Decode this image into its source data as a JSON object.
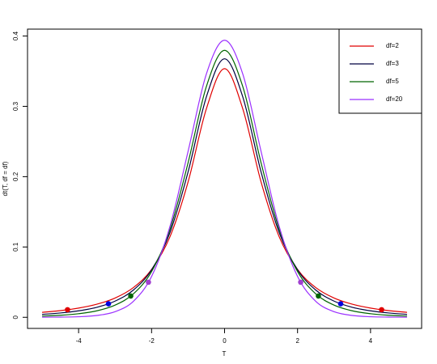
{
  "chart_data": {
    "type": "line",
    "xlabel": "T",
    "ylabel": "dt(T, df = df)",
    "x": [
      -5,
      -4.5,
      -4,
      -3.5,
      -3,
      -2.5,
      -2,
      -1.5,
      -1,
      -0.5,
      0,
      0.5,
      1,
      1.5,
      2,
      2.5,
      3,
      3.5,
      4,
      4.5,
      5
    ],
    "series": [
      {
        "name": "df=2",
        "color": "#e00000",
        "point_color": "#e00000",
        "values": [
          0.0071,
          0.0095,
          0.0131,
          0.0186,
          0.0274,
          0.0422,
          0.068,
          0.1141,
          0.1925,
          0.2963,
          0.3536,
          0.2963,
          0.1925,
          0.1141,
          0.068,
          0.0422,
          0.0274,
          0.0186,
          0.0131,
          0.0095,
          0.0071
        ],
        "critical_x": [
          -4.303,
          4.303
        ],
        "critical_y": [
          0.0108,
          0.0108
        ]
      },
      {
        "name": "df=3",
        "color": "#000040",
        "point_color": "#0000e0",
        "values": [
          0.0042,
          0.0061,
          0.0092,
          0.0142,
          0.023,
          0.0387,
          0.0675,
          0.12,
          0.2067,
          0.3132,
          0.3676,
          0.3132,
          0.2067,
          0.12,
          0.0675,
          0.0387,
          0.023,
          0.0142,
          0.0092,
          0.0061,
          0.0042
        ],
        "critical_x": [
          -3.182,
          3.182
        ],
        "critical_y": [
          0.0192,
          0.0192
        ]
      },
      {
        "name": "df=5",
        "color": "#006400",
        "point_color": "#006400",
        "values": [
          0.0018,
          0.0029,
          0.0051,
          0.0092,
          0.0173,
          0.0333,
          0.0651,
          0.1245,
          0.2197,
          0.3279,
          0.3796,
          0.3279,
          0.2197,
          0.1245,
          0.0651,
          0.0333,
          0.0173,
          0.0092,
          0.0051,
          0.0029,
          0.0018
        ],
        "critical_x": [
          -2.571,
          2.571
        ],
        "critical_y": [
          0.0303,
          0.0303
        ]
      },
      {
        "name": "df=20",
        "color": "#9b30ff",
        "point_color": "#a040d0",
        "values": [
          0.0001,
          0.0003,
          0.0008,
          0.0026,
          0.008,
          0.0227,
          0.0581,
          0.1286,
          0.236,
          0.3458,
          0.394,
          0.3458,
          0.236,
          0.1286,
          0.0581,
          0.0227,
          0.008,
          0.0026,
          0.0008,
          0.0003,
          0.0001
        ],
        "critical_x": [
          -2.086,
          2.086
        ],
        "critical_y": [
          0.0499,
          0.0499
        ]
      }
    ],
    "xlim": [
      -5.4,
      5.4
    ],
    "ylim": [
      -0.0158,
      0.4098
    ],
    "xticks": [
      -4,
      -2,
      0,
      2,
      4
    ],
    "yticks": [
      0.0,
      {
        "value": 0.1,
        "label": "0.1"
      },
      {
        "value": 0.2,
        "label": "0.2"
      },
      {
        "value": 0.3,
        "label": "0.3"
      },
      {
        "value": 0.4,
        "label": "0.4"
      }
    ],
    "grid": false,
    "legend": "top-right"
  }
}
